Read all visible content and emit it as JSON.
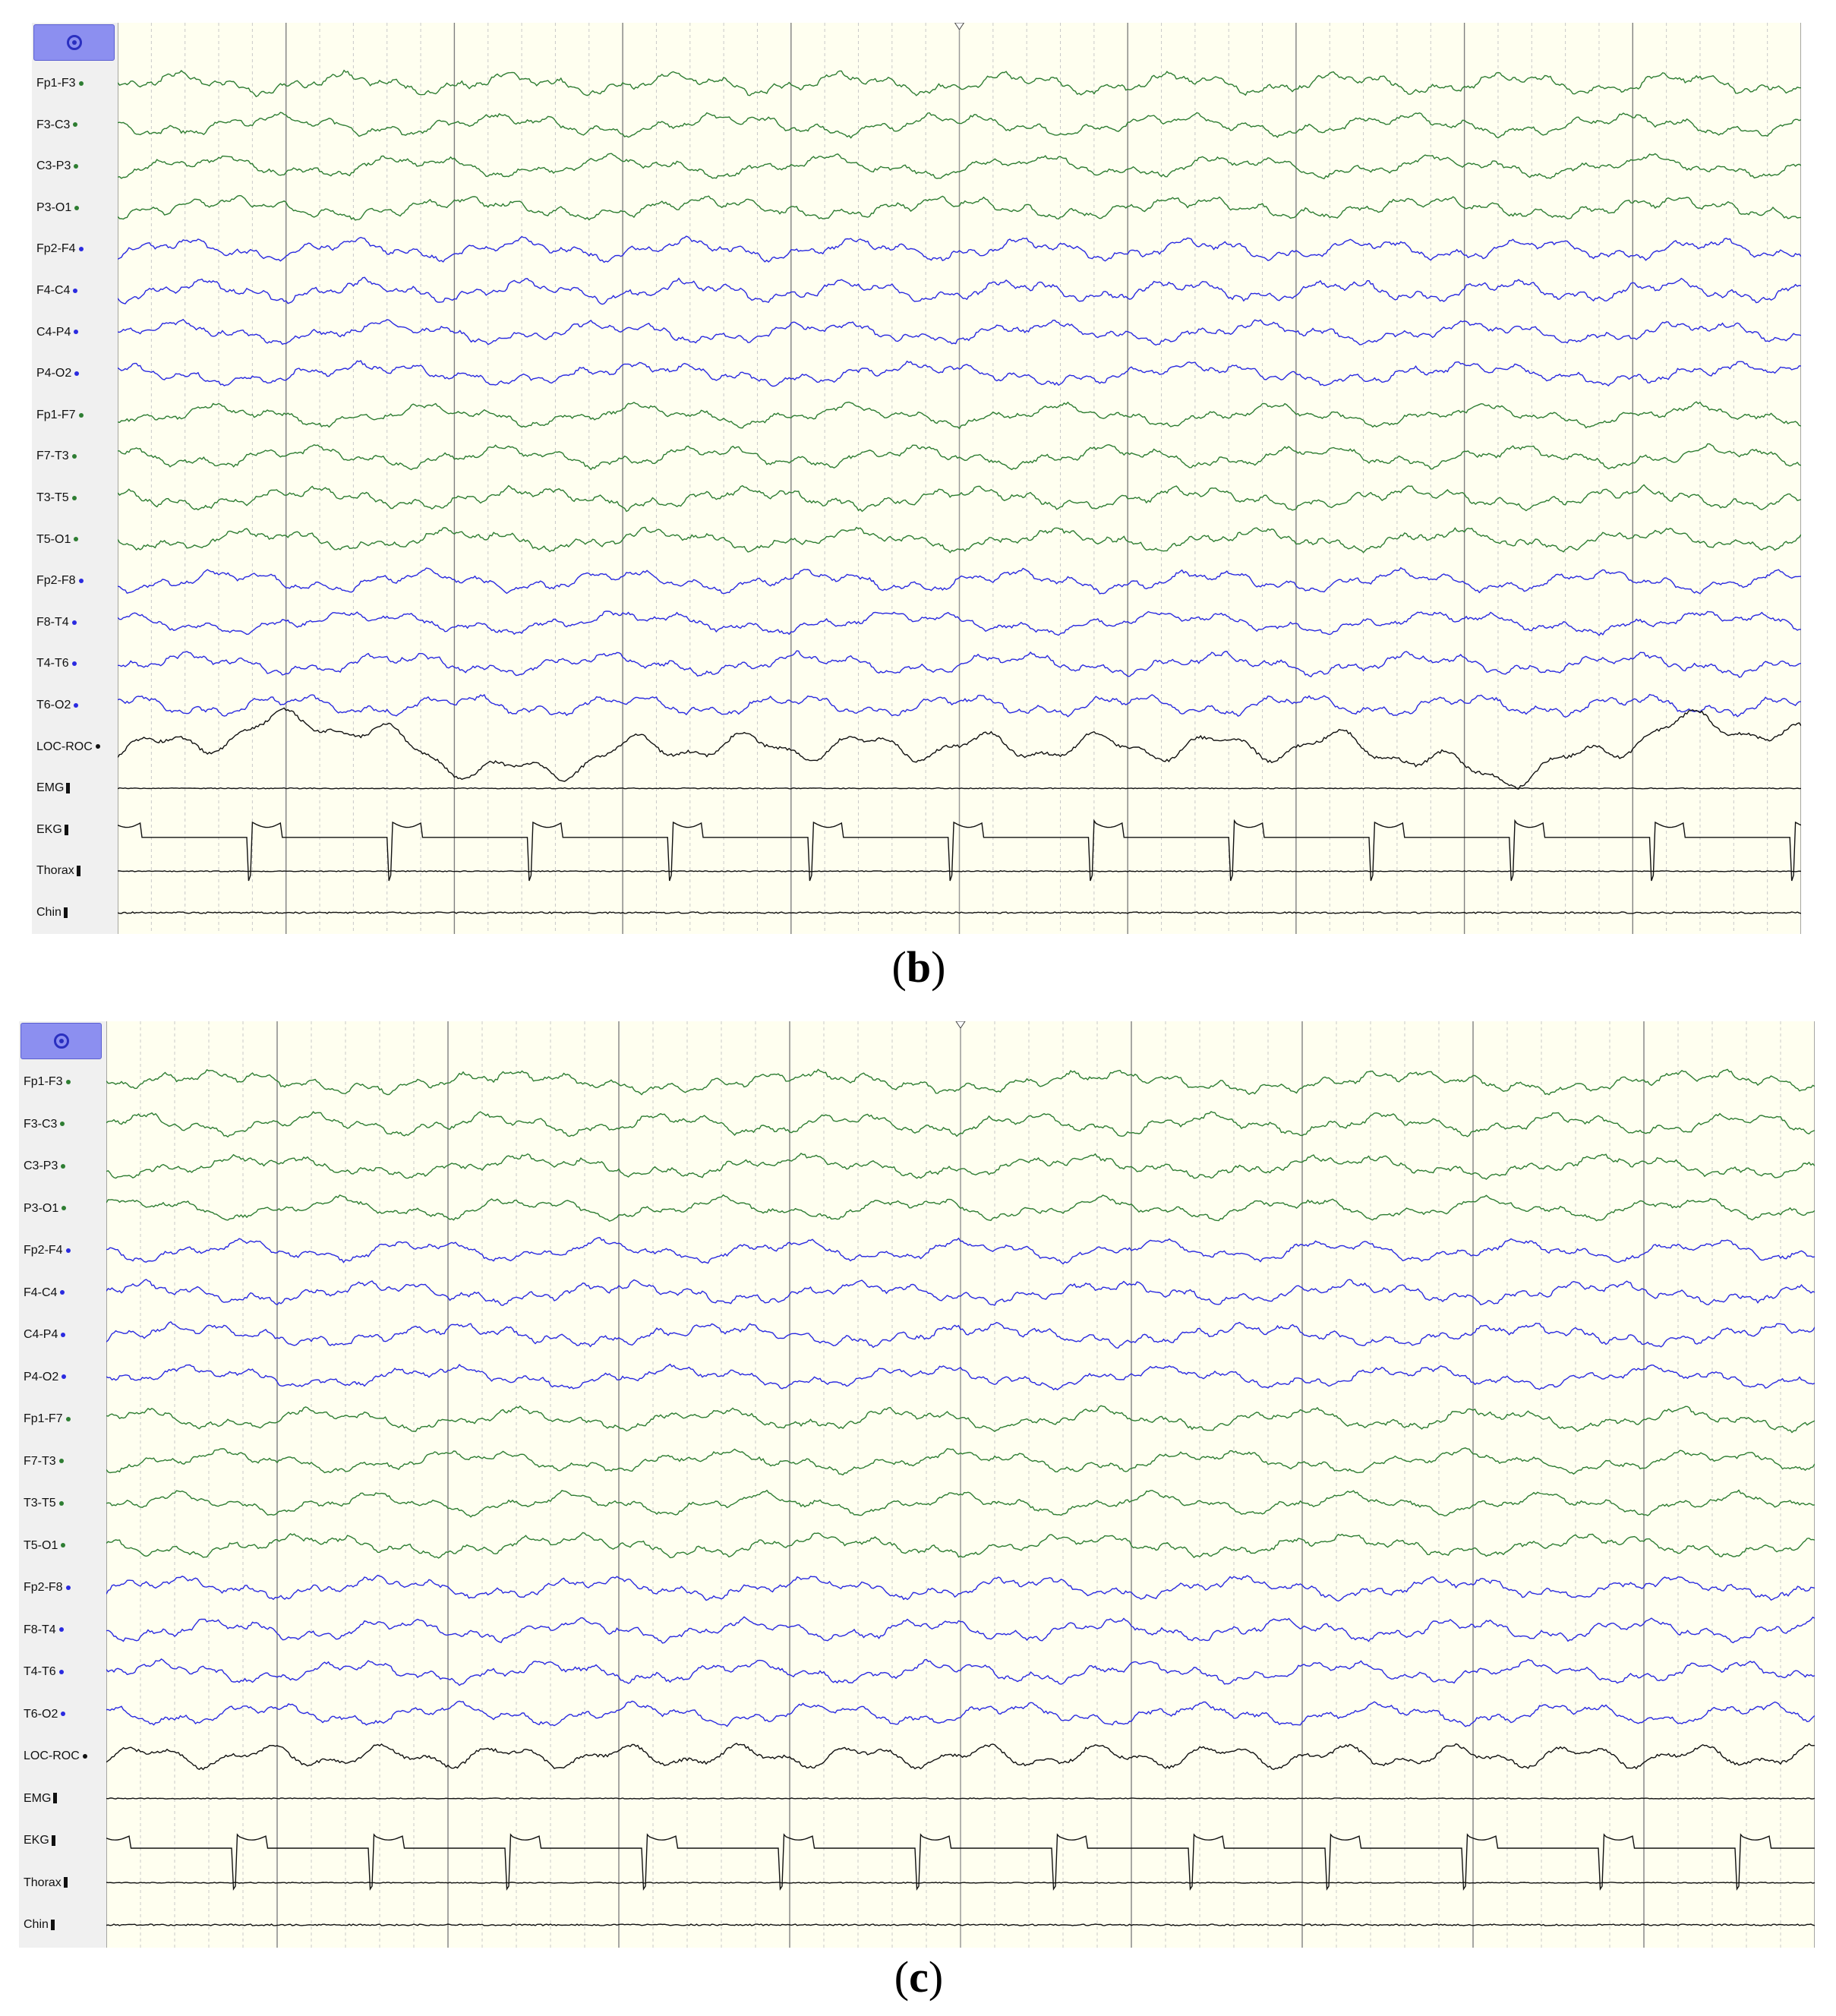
{
  "panels": [
    {
      "id": "b",
      "caption_open": "(",
      "caption_letter": "b",
      "caption_close": ")",
      "channels": [
        {
          "label": "Fp1-F3",
          "marker": "dot",
          "color": "#2e7d32"
        },
        {
          "label": "F3-C3",
          "marker": "dot",
          "color": "#2e7d32"
        },
        {
          "label": "C3-P3",
          "marker": "dot",
          "color": "#2e7d32"
        },
        {
          "label": "P3-O1",
          "marker": "dot",
          "color": "#2e7d32"
        },
        {
          "label": "Fp2-F4",
          "marker": "dot",
          "color": "#2a2ae0"
        },
        {
          "label": "F4-C4",
          "marker": "dot",
          "color": "#2a2ae0"
        },
        {
          "label": "C4-P4",
          "marker": "dot",
          "color": "#2a2ae0"
        },
        {
          "label": "P4-O2",
          "marker": "dot",
          "color": "#2a2ae0"
        },
        {
          "label": "Fp1-F7",
          "marker": "dot",
          "color": "#2e7d32"
        },
        {
          "label": "F7-T3",
          "marker": "dot",
          "color": "#2e7d32"
        },
        {
          "label": "T3-T5",
          "marker": "dot",
          "color": "#2e7d32"
        },
        {
          "label": "T5-O1",
          "marker": "dot",
          "color": "#2e7d32"
        },
        {
          "label": "Fp2-F8",
          "marker": "dot",
          "color": "#2a2ae0"
        },
        {
          "label": "F8-T4",
          "marker": "dot",
          "color": "#2a2ae0"
        },
        {
          "label": "T4-T6",
          "marker": "dot",
          "color": "#2a2ae0"
        },
        {
          "label": "T6-O2",
          "marker": "dot",
          "color": "#2a2ae0"
        },
        {
          "label": "LOC-ROC",
          "marker": "dot",
          "color": "#111111"
        },
        {
          "label": "EMG",
          "marker": "bar",
          "color": "#111111"
        },
        {
          "label": "EKG",
          "marker": "bar",
          "color": "#111111"
        },
        {
          "label": "Thorax",
          "marker": "bar",
          "color": "#111111"
        },
        {
          "label": "Chin",
          "marker": "bar",
          "color": "#111111"
        }
      ]
    },
    {
      "id": "c",
      "caption_open": "(",
      "caption_letter": "c",
      "caption_close": ")",
      "channels": [
        {
          "label": "Fp1-F3",
          "marker": "dot",
          "color": "#2e7d32"
        },
        {
          "label": "F3-C3",
          "marker": "dot",
          "color": "#2e7d32"
        },
        {
          "label": "C3-P3",
          "marker": "dot",
          "color": "#2e7d32"
        },
        {
          "label": "P3-O1",
          "marker": "dot",
          "color": "#2e7d32"
        },
        {
          "label": "Fp2-F4",
          "marker": "dot",
          "color": "#2a2ae0"
        },
        {
          "label": "F4-C4",
          "marker": "dot",
          "color": "#2a2ae0"
        },
        {
          "label": "C4-P4",
          "marker": "dot",
          "color": "#2a2ae0"
        },
        {
          "label": "P4-O2",
          "marker": "dot",
          "color": "#2a2ae0"
        },
        {
          "label": "Fp1-F7",
          "marker": "dot",
          "color": "#2e7d32"
        },
        {
          "label": "F7-T3",
          "marker": "dot",
          "color": "#2e7d32"
        },
        {
          "label": "T3-T5",
          "marker": "dot",
          "color": "#2e7d32"
        },
        {
          "label": "T5-O1",
          "marker": "dot",
          "color": "#2e7d32"
        },
        {
          "label": "Fp2-F8",
          "marker": "dot",
          "color": "#2a2ae0"
        },
        {
          "label": "F8-T4",
          "marker": "dot",
          "color": "#2a2ae0"
        },
        {
          "label": "T4-T6",
          "marker": "dot",
          "color": "#2a2ae0"
        },
        {
          "label": "T6-O2",
          "marker": "dot",
          "color": "#2a2ae0"
        },
        {
          "label": "LOC-ROC",
          "marker": "dot",
          "color": "#111111"
        },
        {
          "label": "EMG",
          "marker": "bar",
          "color": "#111111"
        },
        {
          "label": "EKG",
          "marker": "bar",
          "color": "#111111"
        },
        {
          "label": "Thorax",
          "marker": "bar",
          "color": "#111111"
        },
        {
          "label": "Chin",
          "marker": "bar",
          "color": "#111111"
        }
      ]
    }
  ],
  "colors": {
    "trace_background": "#fffff0",
    "panel_background": "#f0f0f0",
    "view_button": "#8c8ff0",
    "major_gridline": "#808080",
    "minor_gridline": "#c8c8c8"
  },
  "icons": {
    "view_button": "target-icon",
    "cursor": "cursor-marker-icon"
  }
}
